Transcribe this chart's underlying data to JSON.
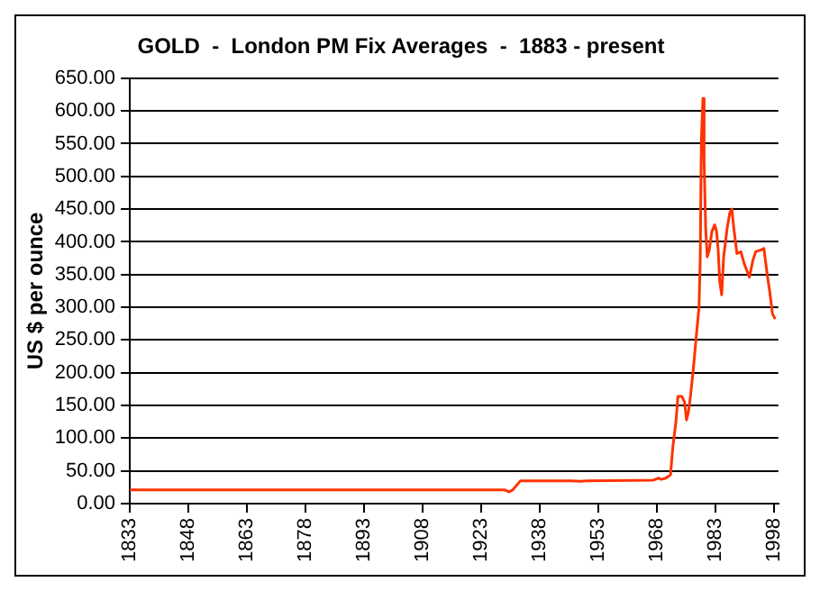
{
  "chart_data": {
    "type": "line",
    "title": "GOLD  -  London PM Fix Averages  -  1883 - present",
    "ylabel": "US $ per ounce",
    "x": [
      1833,
      1929,
      1930,
      1931,
      1933,
      1946,
      1948.6,
      1950,
      1967,
      1968.4,
      1969,
      1970.2,
      1971.4,
      1972,
      1972.8,
      1973.3,
      1974.3,
      1975,
      1975.5,
      1976,
      1976.5,
      1977.2,
      1978,
      1978.7,
      1979,
      1979.3,
      1979.7,
      1980,
      1980.4,
      1980.8,
      1981.3,
      1982,
      1982.7,
      1983.2,
      1983.6,
      1984,
      1984.5,
      1985,
      1985.9,
      1986.6,
      1987.1,
      1987.6,
      1988.4,
      1989.4,
      1990.3,
      1991.6,
      1992.5,
      1993.2,
      1994.7,
      1995.3,
      1996.2,
      1996.8,
      1997.5,
      1998.2
    ],
    "series": [
      {
        "color": "#ff3300",
        "values": [
          21,
          21,
          18,
          21,
          35,
          35,
          34,
          35,
          36,
          39,
          37,
          39,
          44,
          87,
          126,
          164,
          164,
          155,
          128,
          141,
          164,
          203,
          256,
          300,
          372,
          556,
          619,
          522,
          421,
          377,
          387,
          416,
          426,
          416,
          387,
          339,
          319,
          377,
          421,
          445,
          450,
          421,
          382,
          385,
          366,
          346,
          372,
          385,
          388,
          390,
          348,
          324,
          290,
          282
        ]
      }
    ],
    "xlim": [
      1833,
      1999
    ],
    "xticks": [
      1833,
      1848,
      1863,
      1878,
      1893,
      1908,
      1923,
      1938,
      1953,
      1968,
      1983,
      1998
    ],
    "ylim": [
      0,
      650
    ],
    "yticks": [
      {
        "value": 0,
        "label": "0.00"
      },
      {
        "value": 50,
        "label": "50.00"
      },
      {
        "value": 100,
        "label": "100.00"
      },
      {
        "value": 150,
        "label": "150.00"
      },
      {
        "value": 200,
        "label": "200.00"
      },
      {
        "value": 250,
        "label": "250.00"
      },
      {
        "value": 300,
        "label": "300.00"
      },
      {
        "value": 350,
        "label": "350.00"
      },
      {
        "value": 400,
        "label": "400.00"
      },
      {
        "value": 450,
        "label": "450.00"
      },
      {
        "value": 500,
        "label": "500.00"
      },
      {
        "value": 550,
        "label": "550.00"
      },
      {
        "value": 600,
        "label": "600.00"
      },
      {
        "value": 650,
        "label": "650.00"
      }
    ],
    "grid": "y",
    "legend": false,
    "marker": "none",
    "line_style": "solid"
  }
}
